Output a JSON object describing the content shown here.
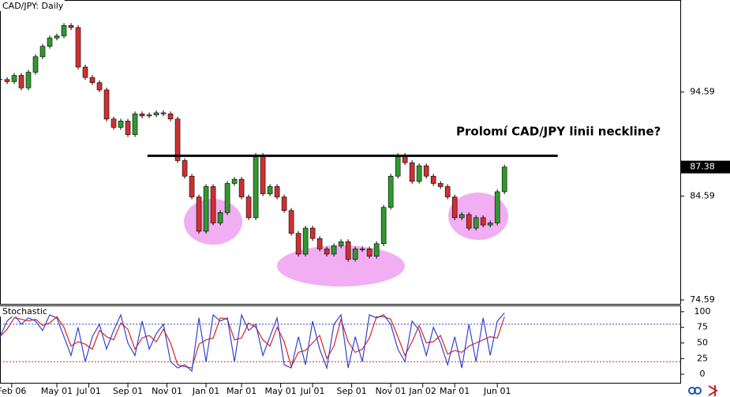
{
  "chart_data": [
    {
      "type": "candlestick",
      "title": "CAD/JPY: Daily",
      "annotation": "Prolomí CAD/JPY linii neckline?",
      "neckline": {
        "value": 88.46,
        "x": [
          41.5,
          157
        ]
      },
      "x": [
        0,
        2,
        4,
        6,
        8,
        10,
        12,
        14,
        16,
        18,
        20,
        22,
        24,
        26,
        28,
        30,
        32,
        34,
        36,
        38,
        40,
        42,
        44,
        46,
        48,
        50,
        52,
        54,
        56,
        58,
        60,
        62,
        64,
        66,
        68,
        70,
        72,
        74,
        76,
        78,
        80,
        82,
        84,
        86,
        88,
        90,
        92,
        94,
        96,
        98,
        100,
        102,
        104,
        106,
        108,
        110,
        112,
        114,
        116,
        118,
        120,
        122,
        124,
        126,
        128,
        130,
        132,
        134,
        136,
        138,
        140,
        142
      ],
      "values": [
        95.8,
        95.6,
        96.2,
        95.0,
        96.5,
        98.0,
        99.0,
        99.8,
        100.0,
        101.0,
        100.8,
        97.0,
        96.0,
        95.5,
        94.8,
        92.0,
        91.2,
        91.8,
        90.5,
        92.5,
        92.3,
        92.4,
        92.6,
        92.5,
        92.0,
        88.0,
        86.5,
        84.5,
        81.2,
        85.5,
        82.0,
        83.0,
        85.8,
        86.2,
        84.5,
        82.5,
        88.5,
        84.8,
        85.5,
        84.5,
        83.2,
        81.0,
        79.0,
        81.5,
        80.5,
        79.5,
        79.0,
        79.8,
        80.2,
        78.5,
        79.5,
        79.5,
        78.8,
        80.0,
        83.5,
        86.5,
        88.5,
        87.8,
        86.0,
        87.5,
        86.5,
        85.8,
        85.5,
        84.5,
        82.5,
        82.8,
        81.5,
        82.5,
        81.8,
        82.0,
        85.0,
        87.38
      ],
      "up_color": "#2e9a2e",
      "down_color": "#d03030",
      "xlim": [
        0,
        191.5
      ],
      "ylim": [
        74.21,
        103.38
      ],
      "yticks": [
        74.59,
        84.59,
        94.59
      ]
    },
    {
      "type": "line",
      "title": "Stochastic",
      "x": [
        0,
        2,
        4,
        6,
        8,
        10,
        12,
        14,
        16,
        18,
        20,
        22,
        24,
        26,
        28,
        30,
        32,
        34,
        36,
        38,
        40,
        42,
        44,
        46,
        48,
        50,
        52,
        54,
        56,
        58,
        60,
        62,
        64,
        66,
        68,
        70,
        72,
        74,
        76,
        78,
        80,
        82,
        84,
        86,
        88,
        90,
        92,
        94,
        96,
        98,
        100,
        102,
        104,
        106,
        108,
        110,
        112,
        114,
        116,
        118,
        120,
        122,
        124,
        126,
        128,
        130,
        132,
        134,
        136,
        138,
        140,
        142
      ],
      "series": [
        {
          "color": "#3344cc",
          "values": [
            60,
            85,
            95,
            80,
            90,
            85,
            70,
            95,
            90,
            60,
            30,
            75,
            20,
            60,
            80,
            40,
            70,
            95,
            50,
            30,
            85,
            40,
            65,
            80,
            20,
            10,
            15,
            5,
            90,
            20,
            95,
            85,
            90,
            20,
            95,
            70,
            80,
            30,
            60,
            90,
            15,
            10,
            60,
            15,
            85,
            40,
            10,
            80,
            95,
            10,
            60,
            20,
            95,
            90,
            95,
            80,
            40,
            20,
            85,
            70,
            30,
            75,
            50,
            15,
            60,
            10,
            80,
            20,
            90,
            30,
            85,
            98
          ]
        },
        {
          "color": "#dd2222",
          "values": [
            60,
            72,
            90,
            88,
            85,
            88,
            78,
            82,
            92,
            75,
            45,
            52,
            48,
            40,
            70,
            60,
            55,
            82,
            72,
            40,
            58,
            62,
            52,
            72,
            50,
            15,
            12,
            10,
            48,
            55,
            58,
            90,
            88,
            55,
            58,
            82,
            75,
            55,
            45,
            75,
            52,
            12,
            35,
            38,
            50,
            62,
            25,
            45,
            88,
            52,
            35,
            40,
            58,
            92,
            92,
            88,
            60,
            30,
            52,
            78,
            50,
            52,
            62,
            32,
            38,
            35,
            45,
            50,
            55,
            60,
            58,
            92
          ]
        }
      ],
      "levels": [
        {
          "value": 80,
          "color": "#3344cc"
        },
        {
          "value": 20,
          "color": "#dd2222"
        }
      ],
      "xlim": [
        0,
        191.5
      ],
      "ylim": [
        -13.75,
        108.75
      ],
      "yticks": [
        0,
        25,
        50,
        75,
        100
      ],
      "xticks": [
        {
          "value": 3.3,
          "label": "Feb 06"
        },
        {
          "value": 16,
          "label": "May 01"
        },
        {
          "value": 25,
          "label": "Jul 01"
        },
        {
          "value": 36,
          "label": "Sep 01"
        },
        {
          "value": 47,
          "label": "Nov 01"
        },
        {
          "value": 58,
          "label": "Jan 01"
        },
        {
          "value": 68,
          "label": "Mar 01"
        },
        {
          "value": 79,
          "label": "May 01"
        },
        {
          "value": 88,
          "label": "Jul 01"
        },
        {
          "value": 99,
          "label": "Sep 01"
        },
        {
          "value": 110,
          "label": "Nov 01"
        },
        {
          "value": 119,
          "label": "Jan 02"
        },
        {
          "value": 128,
          "label": "Mar 01"
        },
        {
          "value": 140,
          "label": "Jun 01"
        }
      ]
    }
  ]
}
